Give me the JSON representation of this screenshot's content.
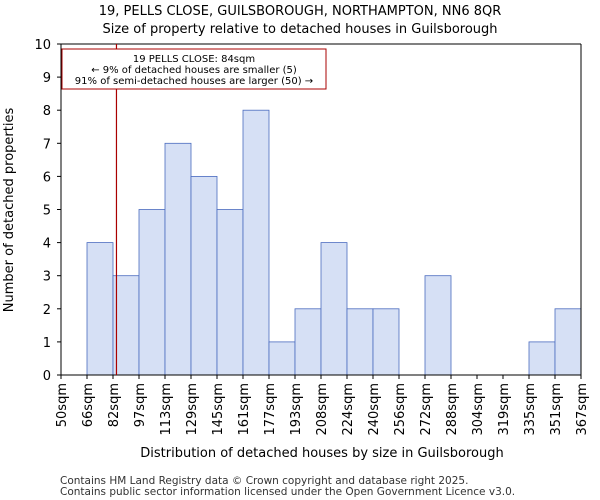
{
  "chart_data": {
    "type": "bar",
    "title_line1": "19, PELLS CLOSE, GUILSBOROUGH, NORTHAMPTON, NN6 8QR",
    "title_line2": "Size of property relative to detached houses in Guilsborough",
    "xlabel": "Distribution of detached houses by size in Guilsborough",
    "ylabel": "Number of detached properties",
    "bin_edges": [
      50,
      66,
      82,
      97,
      113,
      129,
      145,
      161,
      177,
      193,
      208,
      224,
      240,
      256,
      272,
      288,
      304,
      319,
      335,
      351,
      367
    ],
    "tick_labels": [
      "50sqm",
      "66sqm",
      "82sqm",
      "97sqm",
      "113sqm",
      "129sqm",
      "145sqm",
      "161sqm",
      "177sqm",
      "193sqm",
      "208sqm",
      "224sqm",
      "240sqm",
      "256sqm",
      "272sqm",
      "288sqm",
      "304sqm",
      "319sqm",
      "335sqm",
      "351sqm",
      "367sqm"
    ],
    "values": [
      0,
      4,
      3,
      5,
      7,
      6,
      5,
      8,
      1,
      2,
      4,
      2,
      2,
      0,
      3,
      0,
      0,
      0,
      1,
      2
    ],
    "ylim": [
      0,
      10
    ],
    "yticks": [
      0,
      1,
      2,
      3,
      4,
      5,
      6,
      7,
      8,
      9,
      10
    ],
    "property_size": 84,
    "annotation": {
      "line1": "19 PELLS CLOSE: 84sqm",
      "line2": "← 9% of detached houses are smaller (5)",
      "line3": "91% of semi-detached houses are larger (50) →"
    },
    "colors": {
      "bar_fill": "#d6e0f5",
      "bar_stroke": "#4a6bbf",
      "marker": "#aa0000",
      "annotation_border": "#aa0000"
    }
  },
  "footer": {
    "line1": "Contains HM Land Registry data © Crown copyright and database right 2025.",
    "line2": "Contains public sector information licensed under the Open Government Licence v3.0."
  }
}
